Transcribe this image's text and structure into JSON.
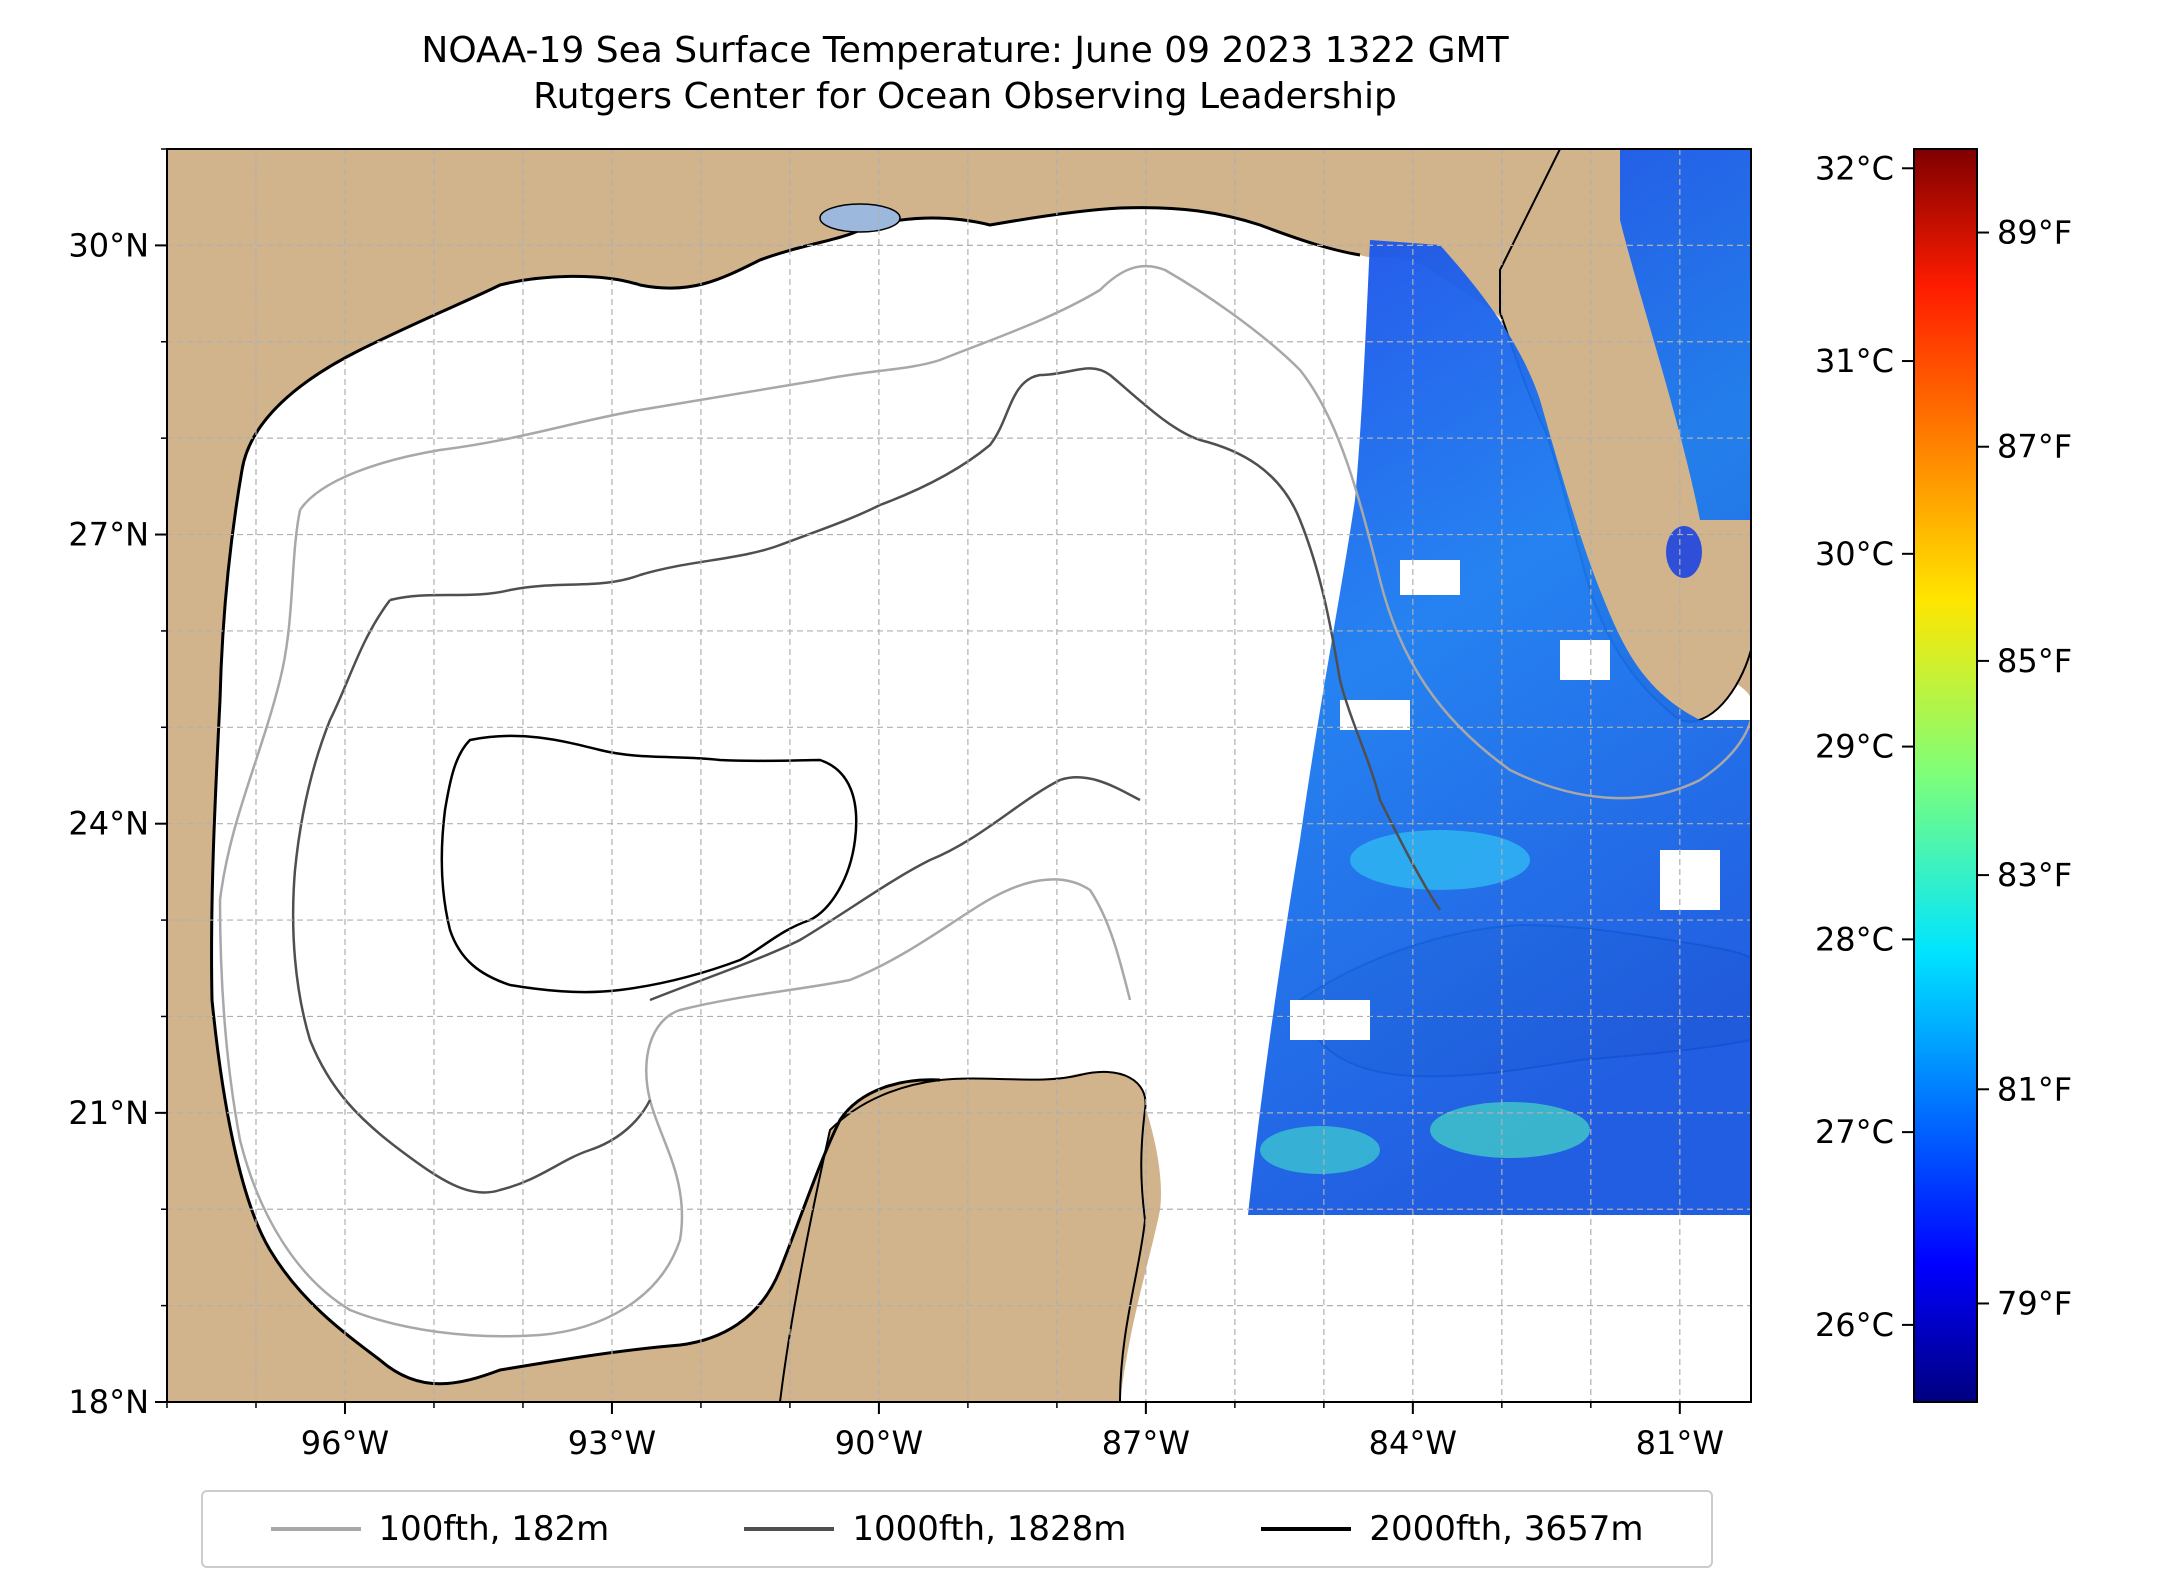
{
  "header": {
    "title_line1": "NOAA-19 Sea Surface Temperature: June 09 2023 1322 GMT",
    "title_line2": "Rutgers Center for Ocean Observing Leadership"
  },
  "map": {
    "extent": {
      "lon_min": -98.0,
      "lon_max": -80.2,
      "lat_min": 18.0,
      "lat_max": 31.0
    },
    "lat_ticks": [
      "18°N",
      "21°N",
      "24°N",
      "27°N",
      "30°N"
    ],
    "lon_ticks": [
      "96°W",
      "93°W",
      "90°W",
      "87°W",
      "84°W",
      "81°W"
    ],
    "colors": {
      "land": "#d2b48c",
      "lakes": "#9cb8dc",
      "grid": "#b0b0b0",
      "contour_100": "#a8a8a8",
      "contour_1000": "#4f4f4f",
      "contour_2000": "#000000"
    }
  },
  "colorbar": {
    "celsius_ticks": [
      "32°C",
      "31°C",
      "30°C",
      "29°C",
      "28°C",
      "27°C",
      "26°C"
    ],
    "fahrenheit_ticks": [
      "89°F",
      "87°F",
      "85°F",
      "83°F",
      "81°F",
      "79°F"
    ],
    "colormap": "jet",
    "range_c": [
      25.6,
      32.1
    ]
  },
  "legend": {
    "items": [
      {
        "label": "100fth, 182m",
        "color": "#a8a8a8"
      },
      {
        "label": "1000fth, 1828m",
        "color": "#4f4f4f"
      },
      {
        "label": "2000fth, 3657m",
        "color": "#000000"
      }
    ]
  }
}
